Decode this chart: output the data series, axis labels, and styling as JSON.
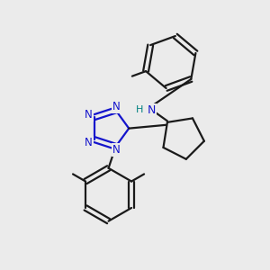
{
  "background_color": "#ebebeb",
  "bond_color": "#1a1a1a",
  "n_color": "#1414cc",
  "h_color": "#008080",
  "figsize": [
    3.0,
    3.0
  ],
  "dpi": 100,
  "xlim": [
    0,
    10
  ],
  "ylim": [
    0,
    10
  ]
}
